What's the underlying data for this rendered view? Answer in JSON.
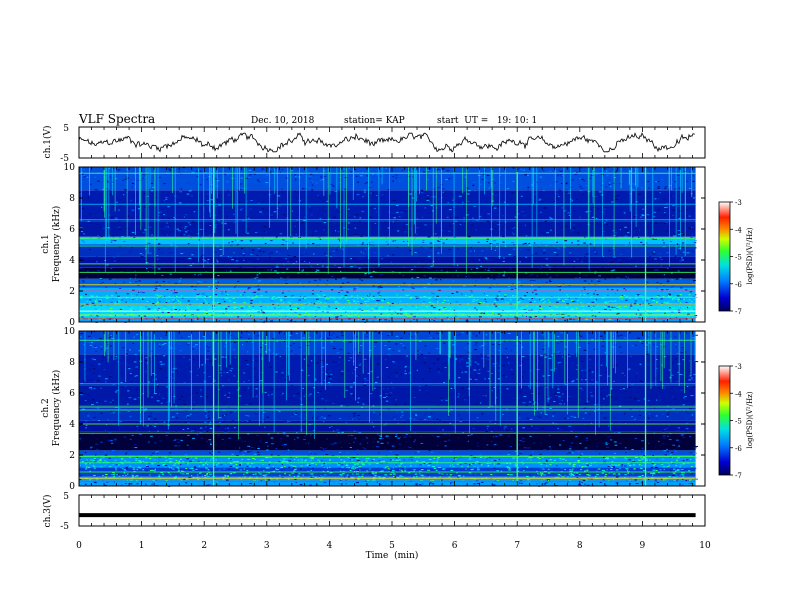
{
  "header": {
    "title": "VLF Spectra",
    "date": "Dec. 10, 2018",
    "station": "station= KAP",
    "start": "start  UT =   19: 10: 1"
  },
  "colors": {
    "background": "#ffffff",
    "axes": "#000000",
    "waveform": "#000000",
    "colormap": [
      "#000000",
      "#0a0a6a",
      "#0010c8",
      "#0050ff",
      "#00b4ff",
      "#00ffc8",
      "#50ff00",
      "#c8ff00",
      "#ff8c00",
      "#ff0000",
      "#ffffff"
    ]
  },
  "chart_data": [
    {
      "type": "line",
      "id": "ch1-waveform",
      "ylabel": "ch.1(V)",
      "ylim": [
        -5,
        5
      ],
      "yticks": [
        "5",
        "-5"
      ],
      "xlim": [
        0,
        10
      ],
      "description_series": "voltage waveform fluctuating roughly between -3 and 3 V",
      "series": [
        {
          "y_range": [
            -3,
            3
          ]
        }
      ]
    },
    {
      "type": "heatmap",
      "id": "ch1-spectrogram",
      "ylabel_top": "ch.1",
      "ylabel": "Frequency  (kHz)",
      "xlim": [
        0,
        10
      ],
      "ylim": [
        0,
        10
      ],
      "yticks": [
        "0",
        "2",
        "4",
        "6",
        "8",
        "10"
      ],
      "colorbar": {
        "label": "log(PSD)(V²/Hz)",
        "range": [
          -7,
          -3
        ],
        "ticks": [
          "-3",
          "-4",
          "-5",
          "-6",
          "-7"
        ]
      },
      "data_extent_x": [
        0,
        9.85
      ],
      "strong_vertical_lines_min": [
        2.15,
        7.0,
        9.05
      ]
    },
    {
      "type": "heatmap",
      "id": "ch2-spectrogram",
      "ylabel_top": "ch.2",
      "ylabel": "Frequency  (kHz)",
      "xlim": [
        0,
        10
      ],
      "ylim": [
        0,
        10
      ],
      "yticks": [
        "0",
        "2",
        "4",
        "6",
        "8",
        "10"
      ],
      "colorbar": {
        "label": "log(PSD)(V²/Hz)",
        "range": [
          -7,
          -3
        ],
        "ticks": [
          "-3",
          "-4",
          "-5",
          "-6",
          "-7"
        ]
      },
      "data_extent_x": [
        0,
        9.85
      ],
      "strong_vertical_lines_min": [
        2.15,
        7.0,
        9.05
      ]
    },
    {
      "type": "line",
      "id": "ch3-waveform",
      "ylabel": "ch.3(V)",
      "xlabel": "Time  (min)",
      "xlim": [
        0,
        10
      ],
      "xticks": [
        "0",
        "1",
        "2",
        "3",
        "4",
        "5",
        "6",
        "7",
        "8",
        "9",
        "10"
      ],
      "ylim": [
        -5,
        5
      ],
      "yticks": [
        "5",
        "-5"
      ],
      "series": [
        {
          "constant_value": -1.5
        }
      ]
    }
  ]
}
